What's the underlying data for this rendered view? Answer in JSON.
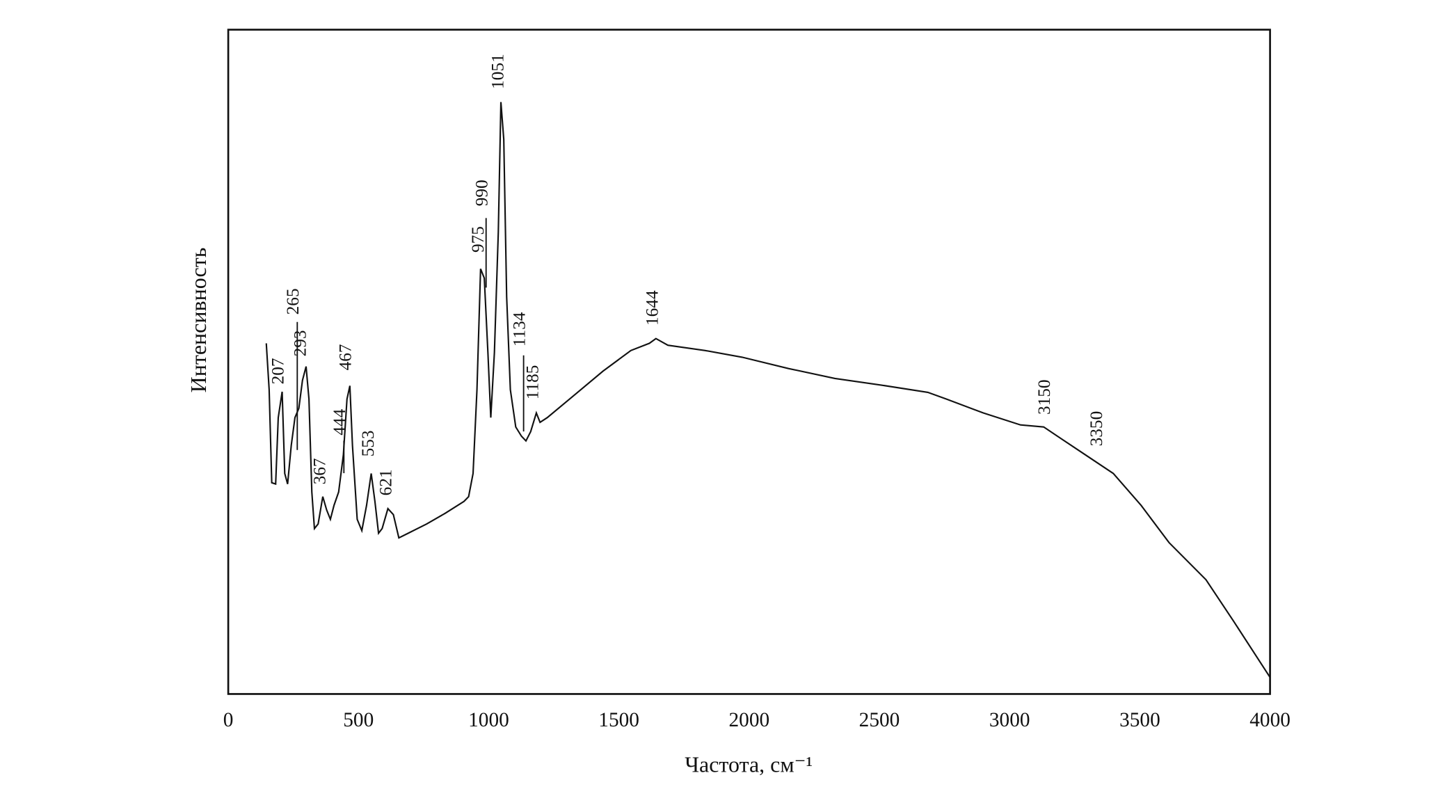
{
  "chart_data": {
    "type": "line",
    "x_label": "Частота, см⁻¹",
    "y_label": "Интенсивность",
    "xlim": [
      0,
      4000
    ],
    "xticks": [
      0,
      500,
      1000,
      1500,
      2000,
      2500,
      3000,
      3500,
      4000
    ],
    "ylim": [
      0,
      100
    ],
    "color": "#111111",
    "x": [
      146,
      157,
      167,
      182,
      192,
      207,
      217,
      228,
      242,
      256,
      271,
      285,
      299,
      310,
      321,
      331,
      345,
      363,
      378,
      392,
      406,
      424,
      442,
      456,
      467,
      477,
      495,
      513,
      531,
      549,
      563,
      577,
      591,
      613,
      634,
      655,
      691,
      762,
      833,
      905,
      923,
      940,
      955,
      969,
      983,
      997,
      1008,
      1022,
      1037,
      1047,
      1058,
      1069,
      1083,
      1104,
      1126,
      1143,
      1161,
      1183,
      1197,
      1225,
      1332,
      1439,
      1546,
      1617,
      1642,
      1688,
      1831,
      1973,
      2151,
      2329,
      2508,
      2686,
      2757,
      2899,
      3042,
      3131,
      3184,
      3291,
      3398,
      3505,
      3612,
      3754,
      3861,
      4000
    ],
    "values": [
      52.8,
      45.8,
      31.8,
      31.6,
      41.6,
      45.5,
      33.2,
      31.6,
      37.4,
      41.6,
      43.0,
      47.2,
      49.3,
      44.4,
      30.4,
      24.9,
      25.6,
      29.7,
      27.7,
      26.3,
      28.4,
      30.4,
      36.0,
      44.4,
      46.4,
      37.4,
      26.3,
      24.6,
      28.4,
      33.2,
      29.0,
      24.2,
      24.9,
      27.9,
      27.0,
      23.5,
      24.2,
      25.6,
      27.2,
      29.0,
      29.7,
      33.2,
      45.8,
      64.0,
      62.6,
      51.4,
      41.6,
      51.4,
      69.5,
      89.1,
      83.5,
      59.8,
      45.8,
      40.2,
      38.8,
      38.1,
      39.5,
      42.3,
      40.9,
      41.6,
      45.1,
      48.6,
      51.7,
      52.8,
      53.5,
      52.5,
      51.7,
      50.7,
      49.0,
      47.5,
      46.5,
      45.4,
      44.4,
      42.3,
      40.5,
      40.2,
      38.8,
      36.0,
      33.2,
      28.4,
      22.8,
      17.2,
      10.9,
      2.5
    ],
    "peak_labels": [
      207,
      265,
      293,
      367,
      444,
      467,
      553,
      621,
      975,
      990,
      1051,
      1134,
      1185,
      1644,
      3150,
      3350
    ]
  }
}
